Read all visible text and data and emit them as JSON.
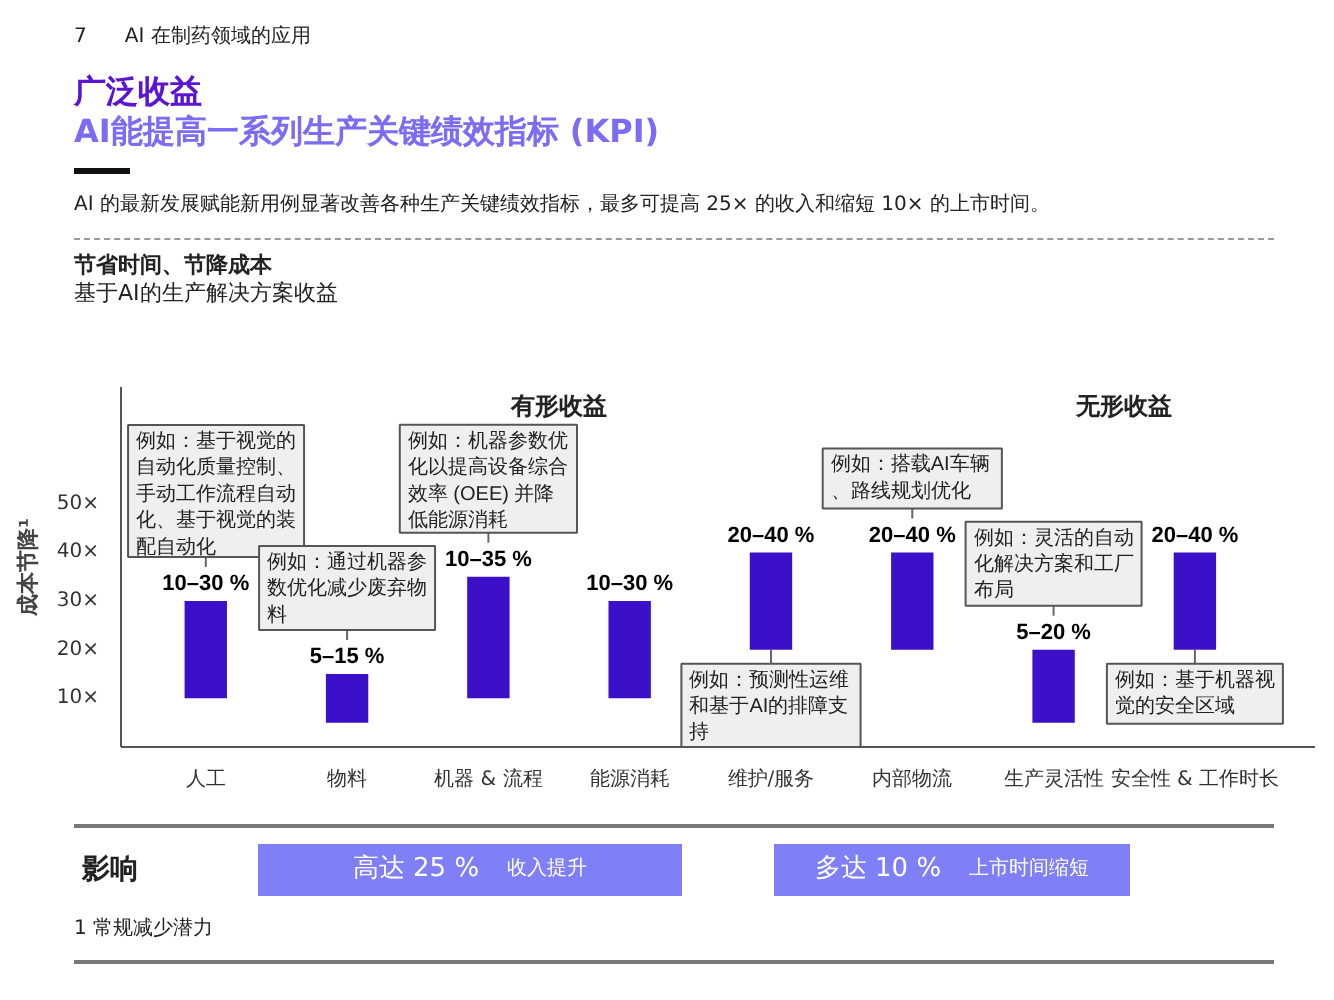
{
  "chart_data": {
    "type": "bar",
    "title": "广泛收益",
    "subtitle": "AI能提高一系列生产关键绩效指标 (KPI)",
    "ylabel": "成本节降¹",
    "categories": [
      "人工",
      "物料",
      "机器 & 流程",
      "能源消耗",
      "维护/服务",
      "内部物流",
      "生产灵活性",
      "安全性 & 工作时长"
    ],
    "base": [
      10,
      5,
      10,
      10,
      20,
      20,
      5,
      20
    ],
    "values": [
      20,
      10,
      25,
      20,
      20,
      20,
      15,
      20
    ],
    "color": "#3c0fc8",
    "ylim": [
      0,
      74
    ],
    "yticks": [
      {
        "value": 10,
        "label": "10×"
      },
      {
        "value": 20,
        "label": "20×"
      },
      {
        "value": 30,
        "label": "30×"
      },
      {
        "value": 40,
        "label": "40×"
      },
      {
        "value": 50,
        "label": "50×"
      }
    ],
    "annotations": [
      "7",
      "AI 在制药领域的应用",
      "AI 的最新发展赋能新用例显著改善各种生产关键绩效指标，最多可提高 25× 的收入和缩短 10× 的上市时间。",
      "节省时间、节降成本",
      "基于AI的生产解决方案收益",
      "有形收益",
      "无形收益",
      {
        "text": "10–30 %",
        "x": "人工",
        "y": 30
      },
      {
        "text": "5–15 %",
        "x": "物料",
        "y": 15
      },
      {
        "text": "10–35 %",
        "x": "机器 & 流程",
        "y": 35
      },
      {
        "text": "10–30 %",
        "x": "能源消耗",
        "y": 30
      },
      {
        "text": "20–40 %",
        "x": "维护/服务",
        "y": 40
      },
      {
        "text": "20–40 %",
        "x": "内部物流",
        "y": 40
      },
      {
        "text": "5–20 %",
        "x": "生产灵活性",
        "y": 20
      },
      {
        "text": "20–40 %",
        "x": "安全性 & 工作时长",
        "y": 40
      },
      {
        "text": "例如：基于视觉的自动化质量控制、手动工作流程自动化、基于视觉的装配自动化",
        "x": "人工",
        "y": 30
      },
      {
        "text": "例如：通过机器参数优化减少废弃物料",
        "x": "物料",
        "y": 15
      },
      {
        "text": "例如：机器参数优化以提高设备综合效率 (OEE) 并降低能源消耗",
        "x": "机器 & 流程",
        "y": 35
      },
      {
        "text": "例如：预测性运维和基于AI的排障支持",
        "x": "维护/服务",
        "y": 20
      },
      {
        "text": "例如：搭载AI车辆、路线规划优化",
        "x": "内部物流",
        "y": 40
      },
      {
        "text": "例如：灵活的自动化解决方案和工厂布局",
        "x": "生产灵活性",
        "y": 20
      },
      {
        "text": "例如：基于机器视觉的安全区域",
        "x": "安全性 & 工作时长",
        "y": 20
      },
      "影响",
      "高达 25 %",
      "收入提升",
      "多达 10 %",
      "上市时间缩短",
      "1 常规减少潜力"
    ]
  }
}
